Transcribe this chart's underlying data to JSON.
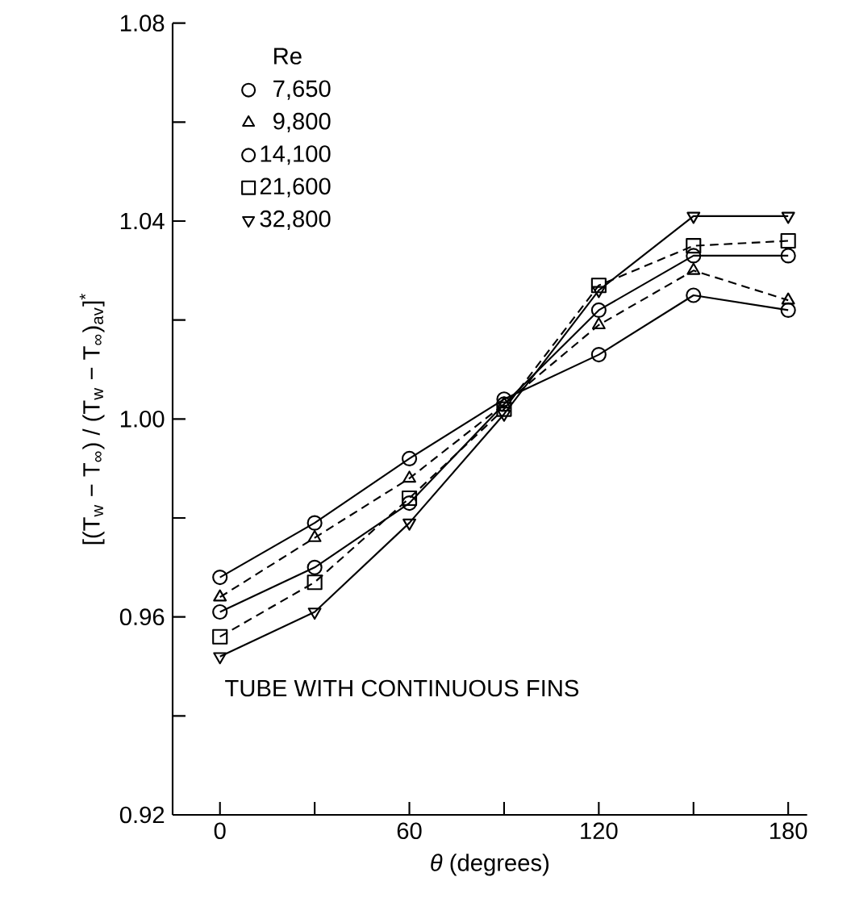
{
  "chart_data": {
    "type": "line",
    "xlabel": "*θ* (degrees)",
    "ylabel": "[(T$_{w}$ − T$_{∞}$) / (T$_{w}$ − T$_{∞}$)$_{av}$]$^{*}$",
    "legend_title": "Re",
    "annotations": [
      "TUBE WITH CONTINUOUS FINS"
    ],
    "x": [
      0,
      30,
      60,
      90,
      120,
      150,
      180
    ],
    "series": [
      {
        "name": "7,650",
        "color": "#000000",
        "marker": "circle",
        "line_style": "solid",
        "values": [
          0.968,
          0.979,
          0.992,
          1.004,
          1.013,
          1.025,
          1.022
        ]
      },
      {
        "name": "9,800",
        "color": "#000000",
        "marker": "triangle",
        "line_style": "dashed",
        "values": [
          0.964,
          0.976,
          0.988,
          1.003,
          1.019,
          1.03,
          1.024
        ]
      },
      {
        "name": "14,100",
        "color": "#000000",
        "marker": "circle",
        "line_style": "solid",
        "values": [
          0.961,
          0.97,
          0.983,
          1.003,
          1.022,
          1.033,
          1.033
        ]
      },
      {
        "name": "21,600",
        "color": "#000000",
        "marker": "square",
        "line_style": "dashed",
        "values": [
          0.956,
          0.967,
          0.984,
          1.002,
          1.027,
          1.035,
          1.036
        ]
      },
      {
        "name": "32,800",
        "color": "#000000",
        "marker": "triangle-down",
        "line_style": "solid",
        "values": [
          0.952,
          0.961,
          0.979,
          1.001,
          1.026,
          1.041,
          1.041
        ]
      }
    ],
    "xlim": [
      -15,
      186
    ],
    "ylim": [
      0.92,
      1.08
    ],
    "xticks": [
      0,
      {
        "value": 30,
        "label": null
      },
      60,
      {
        "value": 90,
        "label": null
      },
      120,
      {
        "value": 150,
        "label": null
      },
      180
    ],
    "yticks": [
      0.92,
      {
        "value": 0.94,
        "label": null
      },
      0.96,
      {
        "value": 0.98,
        "label": null
      },
      {
        "value": 1.0,
        "label": "1.00"
      },
      {
        "value": 1.02,
        "label": null
      },
      1.04,
      {
        "value": 1.06,
        "label": null
      },
      1.08
    ],
    "grid": false,
    "legend": "top left"
  }
}
